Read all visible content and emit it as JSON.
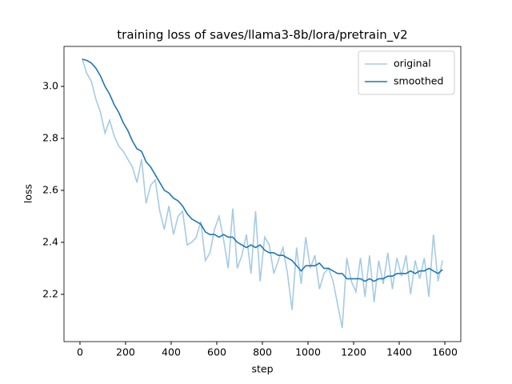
{
  "chart_data": {
    "type": "line",
    "title": "training loss of saves/llama3-8b/lora/pretrain_v2",
    "x_label": "step",
    "y_label": "loss",
    "x": [
      10,
      30,
      50,
      70,
      90,
      110,
      130,
      150,
      170,
      190,
      210,
      230,
      250,
      270,
      290,
      310,
      330,
      350,
      370,
      390,
      410,
      430,
      450,
      470,
      490,
      510,
      530,
      550,
      570,
      590,
      610,
      630,
      650,
      670,
      690,
      710,
      730,
      750,
      770,
      790,
      810,
      830,
      850,
      870,
      890,
      910,
      930,
      950,
      970,
      990,
      1010,
      1030,
      1050,
      1070,
      1090,
      1110,
      1130,
      1150,
      1170,
      1190,
      1210,
      1230,
      1250,
      1270,
      1290,
      1310,
      1330,
      1350,
      1370,
      1390,
      1410,
      1430,
      1450,
      1470,
      1490,
      1510,
      1530,
      1550,
      1570,
      1590
    ],
    "series": [
      {
        "name": "original",
        "color": "#a6cbe3",
        "values": [
          3.105,
          3.05,
          3.02,
          2.95,
          2.9,
          2.82,
          2.87,
          2.81,
          2.77,
          2.75,
          2.72,
          2.69,
          2.63,
          2.72,
          2.55,
          2.62,
          2.64,
          2.52,
          2.45,
          2.54,
          2.43,
          2.5,
          2.52,
          2.39,
          2.4,
          2.42,
          2.48,
          2.33,
          2.36,
          2.45,
          2.5,
          2.41,
          2.3,
          2.53,
          2.3,
          2.35,
          2.43,
          2.28,
          2.52,
          2.25,
          2.42,
          2.39,
          2.28,
          2.33,
          2.38,
          2.28,
          2.14,
          2.38,
          2.24,
          2.42,
          2.3,
          2.35,
          2.22,
          2.28,
          2.3,
          2.25,
          2.16,
          2.07,
          2.34,
          2.25,
          2.21,
          2.34,
          2.19,
          2.35,
          2.17,
          2.33,
          2.24,
          2.36,
          2.22,
          2.34,
          2.27,
          2.35,
          2.2,
          2.33,
          2.26,
          2.34,
          2.19,
          2.43,
          2.25,
          2.33
        ]
      },
      {
        "name": "smoothed",
        "color": "#1f77b4",
        "values": [
          3.105,
          3.1,
          3.09,
          3.07,
          3.04,
          3.0,
          2.97,
          2.93,
          2.9,
          2.86,
          2.83,
          2.79,
          2.76,
          2.75,
          2.71,
          2.69,
          2.66,
          2.63,
          2.6,
          2.59,
          2.57,
          2.56,
          2.54,
          2.51,
          2.49,
          2.48,
          2.47,
          2.44,
          2.43,
          2.43,
          2.42,
          2.43,
          2.42,
          2.42,
          2.4,
          2.39,
          2.38,
          2.39,
          2.38,
          2.39,
          2.37,
          2.36,
          2.36,
          2.35,
          2.35,
          2.34,
          2.33,
          2.31,
          2.29,
          2.31,
          2.31,
          2.31,
          2.32,
          2.3,
          2.3,
          2.29,
          2.28,
          2.28,
          2.26,
          2.26,
          2.26,
          2.26,
          2.25,
          2.26,
          2.25,
          2.26,
          2.26,
          2.27,
          2.27,
          2.28,
          2.28,
          2.28,
          2.29,
          2.28,
          2.29,
          2.29,
          2.3,
          2.29,
          2.28,
          2.295
        ]
      }
    ],
    "xlim": [
      -70,
      1670
    ],
    "ylim": [
      2.018,
      3.154
    ],
    "xticks": [
      0,
      200,
      400,
      600,
      800,
      1000,
      1200,
      1400,
      1600
    ],
    "yticks": [
      2.2,
      2.4,
      2.6,
      2.8,
      {
        "value": 3,
        "label": "3.0"
      }
    ],
    "legend": "upper right"
  }
}
